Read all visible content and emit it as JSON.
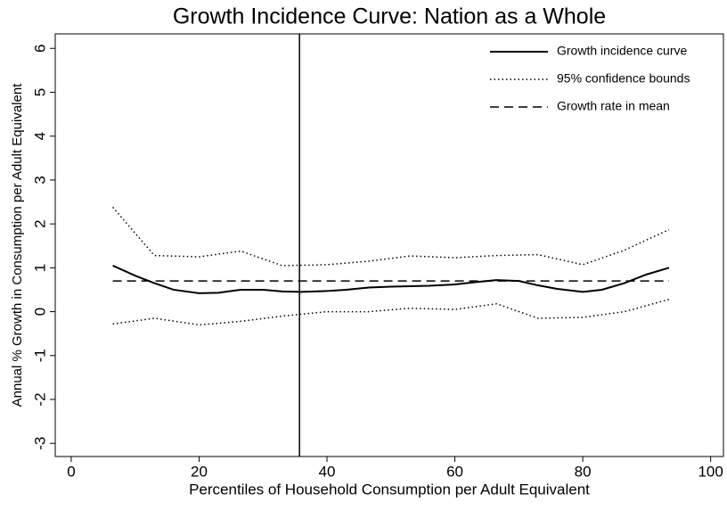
{
  "chart_data": {
    "type": "line",
    "title": "Growth Incidence Curve: Nation as a Whole",
    "x_label": "Percentiles of Household Consumption per Adult Equivalent",
    "y_label": "Annual % Growth in Consumption per Adult Equivalent",
    "xlim": [
      -2.5,
      102
    ],
    "xticks": [
      0,
      20,
      40,
      60,
      80,
      100
    ],
    "ylim": [
      -3.3,
      6.33
    ],
    "yticks": [
      -3,
      -2,
      -1,
      0,
      1,
      2,
      3,
      4,
      5,
      6
    ],
    "vline": 35.7,
    "legend": "top-right",
    "series": [
      {
        "name": "Growth incidence curve",
        "color": "#000000",
        "dash": "solid",
        "x": [
          6.5,
          10,
          13,
          16,
          20,
          23,
          26.5,
          30,
          33,
          36,
          40,
          43,
          46.5,
          50,
          53,
          56,
          60,
          63,
          66.5,
          70,
          73,
          76,
          80,
          83,
          86.5,
          90,
          93.5
        ],
        "values": [
          1.05,
          0.82,
          0.65,
          0.5,
          0.42,
          0.43,
          0.5,
          0.5,
          0.46,
          0.45,
          0.47,
          0.5,
          0.55,
          0.57,
          0.58,
          0.59,
          0.62,
          0.67,
          0.72,
          0.7,
          0.6,
          0.52,
          0.45,
          0.5,
          0.65,
          0.85,
          1.0
        ]
      },
      {
        "name": "95% confidence bounds",
        "color": "#000000",
        "dash": "dotted",
        "x": [
          6.5,
          13,
          20,
          26.5,
          33,
          40,
          46.5,
          53,
          60,
          66.5,
          73,
          80,
          86.5,
          93.5
        ],
        "values": [
          2.38,
          1.28,
          1.25,
          1.38,
          1.05,
          1.07,
          1.15,
          1.27,
          1.23,
          1.28,
          1.3,
          1.07,
          1.4,
          1.87
        ]
      },
      {
        "name": null,
        "color": "#000000",
        "dash": "dotted",
        "x": [
          6.5,
          13,
          20,
          26.5,
          33,
          40,
          46.5,
          53,
          60,
          66.5,
          73,
          80,
          86.5,
          93.5
        ],
        "values": [
          -0.28,
          -0.15,
          -0.3,
          -0.22,
          -0.1,
          0.0,
          0.0,
          0.08,
          0.05,
          0.18,
          -0.15,
          -0.13,
          0.0,
          0.28
        ]
      },
      {
        "name": "Growth rate in mean",
        "color": "#000000",
        "dash": "dashed",
        "x": [
          6.5,
          93.5
        ],
        "values": [
          0.7,
          0.7
        ]
      }
    ]
  }
}
